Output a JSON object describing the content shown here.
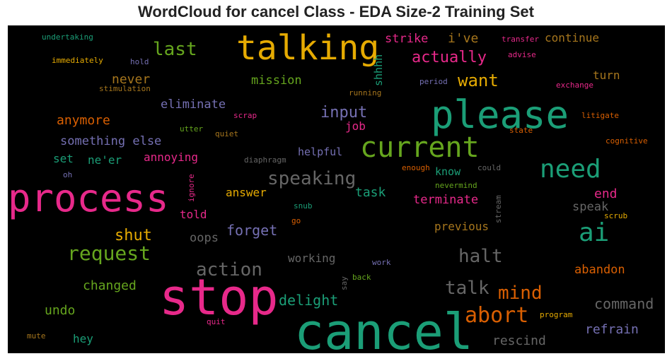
{
  "chart_data": {
    "type": "wordcloud",
    "title": "WordCloud for cancel Class - EDA Size-2 Training Set",
    "background": "#000000",
    "palette": [
      "#1b9e77",
      "#d95f02",
      "#7570b3",
      "#e7298a",
      "#66a61e",
      "#e6ab02",
      "#a6761d",
      "#666666"
    ],
    "words": [
      {
        "text": "cancel",
        "color": "#1b9e77"
      },
      {
        "text": "stop",
        "color": "#e7298a"
      },
      {
        "text": "process",
        "color": "#e7298a"
      },
      {
        "text": "please",
        "color": "#1b9e77"
      },
      {
        "text": "talking",
        "color": "#e6ab02"
      },
      {
        "text": "current",
        "color": "#66a61e"
      },
      {
        "text": "need",
        "color": "#1b9e77"
      },
      {
        "text": "ai",
        "color": "#1b9e77"
      },
      {
        "text": "abort",
        "color": "#d95f02"
      },
      {
        "text": "request",
        "color": "#66a61e"
      },
      {
        "text": "last",
        "color": "#66a61e"
      },
      {
        "text": "speaking",
        "color": "#666666"
      },
      {
        "text": "action",
        "color": "#666666"
      },
      {
        "text": "halt",
        "color": "#666666"
      },
      {
        "text": "mind",
        "color": "#d95f02"
      },
      {
        "text": "talk",
        "color": "#666666"
      },
      {
        "text": "want",
        "color": "#e6ab02"
      },
      {
        "text": "actually",
        "color": "#e7298a"
      },
      {
        "text": "input",
        "color": "#7570b3"
      },
      {
        "text": "shut",
        "color": "#e6ab02"
      },
      {
        "text": "delight",
        "color": "#1b9e77"
      },
      {
        "text": "forget",
        "color": "#7570b3"
      },
      {
        "text": "command",
        "color": "#666666"
      },
      {
        "text": "anymore",
        "color": "#d95f02"
      },
      {
        "text": "something else",
        "color": "#7570b3"
      },
      {
        "text": "never",
        "color": "#a6761d"
      },
      {
        "text": "i've",
        "color": "#a6761d"
      },
      {
        "text": "undo",
        "color": "#66a61e"
      },
      {
        "text": "changed",
        "color": "#66a61e"
      },
      {
        "text": "abandon",
        "color": "#d95f02"
      },
      {
        "text": "refrain",
        "color": "#7570b3"
      },
      {
        "text": "rescind",
        "color": "#666666"
      },
      {
        "text": "end",
        "color": "#e7298a"
      },
      {
        "text": "task",
        "color": "#1b9e77"
      },
      {
        "text": "terminate",
        "color": "#e7298a"
      },
      {
        "text": "strike",
        "color": "#e7298a"
      },
      {
        "text": "mission",
        "color": "#66a61e"
      },
      {
        "text": "eliminate",
        "color": "#7570b3"
      },
      {
        "text": "continue",
        "color": "#a6761d"
      },
      {
        "text": "turn",
        "color": "#a6761d"
      },
      {
        "text": "answer",
        "color": "#e6ab02"
      },
      {
        "text": "oops",
        "color": "#666666"
      },
      {
        "text": "told",
        "color": "#e7298a"
      },
      {
        "text": "speak",
        "color": "#666666"
      },
      {
        "text": "previous",
        "color": "#a6761d"
      },
      {
        "text": "working",
        "color": "#666666"
      },
      {
        "text": "annoying",
        "color": "#e7298a"
      },
      {
        "text": "ne'er",
        "color": "#1b9e77"
      },
      {
        "text": "hey",
        "color": "#1b9e77"
      },
      {
        "text": "helpful",
        "color": "#7570b3"
      },
      {
        "text": "job",
        "color": "#e7298a"
      },
      {
        "text": "set",
        "color": "#1b9e77"
      },
      {
        "text": "know",
        "color": "#1b9e77"
      },
      {
        "text": "shhhh",
        "color": "#1b9e77"
      },
      {
        "text": "undertaking",
        "color": "#1b9e77"
      },
      {
        "text": "immediately",
        "color": "#e6ab02"
      },
      {
        "text": "hold",
        "color": "#7570b3"
      },
      {
        "text": "stimulation",
        "color": "#a6761d"
      },
      {
        "text": "transfer",
        "color": "#e7298a"
      },
      {
        "text": "advise",
        "color": "#e7298a"
      },
      {
        "text": "period",
        "color": "#7570b3"
      },
      {
        "text": "running",
        "color": "#a6761d"
      },
      {
        "text": "exchange",
        "color": "#e7298a"
      },
      {
        "text": "litigate",
        "color": "#d95f02"
      },
      {
        "text": "scrap",
        "color": "#e7298a"
      },
      {
        "text": "utter",
        "color": "#66a61e"
      },
      {
        "text": "quiet",
        "color": "#a6761d"
      },
      {
        "text": "state",
        "color": "#d95f02"
      },
      {
        "text": "cognitive",
        "color": "#d95f02"
      },
      {
        "text": "diaphragm",
        "color": "#666666"
      },
      {
        "text": "enough",
        "color": "#d95f02"
      },
      {
        "text": "could",
        "color": "#666666"
      },
      {
        "text": "oh",
        "color": "#7570b3"
      },
      {
        "text": "ignore",
        "color": "#e7298a"
      },
      {
        "text": "nevermind",
        "color": "#66a61e"
      },
      {
        "text": "snub",
        "color": "#1b9e77"
      },
      {
        "text": "stream",
        "color": "#666666"
      },
      {
        "text": "scrub",
        "color": "#e6ab02"
      },
      {
        "text": "go",
        "color": "#d95f02"
      },
      {
        "text": "work",
        "color": "#7570b3"
      },
      {
        "text": "say",
        "color": "#666666"
      },
      {
        "text": "back",
        "color": "#66a61e"
      },
      {
        "text": "program",
        "color": "#e6ab02"
      },
      {
        "text": "quit",
        "color": "#e7298a"
      },
      {
        "text": "mute",
        "color": "#a6761d"
      }
    ]
  }
}
